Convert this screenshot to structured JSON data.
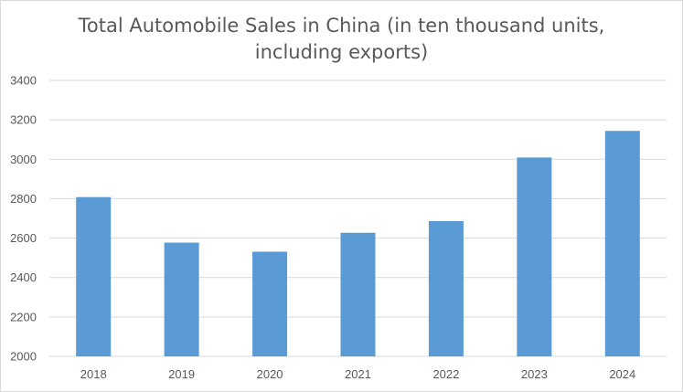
{
  "chart_data": {
    "type": "bar",
    "title_lines": [
      "Total Automobile Sales in China (in ten thousand units,",
      "including exports)"
    ],
    "categories": [
      "2018",
      "2019",
      "2020",
      "2021",
      "2022",
      "2023",
      "2024"
    ],
    "values": [
      2808,
      2577,
      2531,
      2627,
      2686,
      3009,
      3144
    ],
    "ylim": [
      2000,
      3400
    ],
    "yticks": [
      "2000",
      "2200",
      "2400",
      "2600",
      "2800",
      "3000",
      "3200",
      "3400"
    ],
    "grid": true,
    "bar_color": "#5b9bd5",
    "gridline_color": "#d9d9d9"
  }
}
